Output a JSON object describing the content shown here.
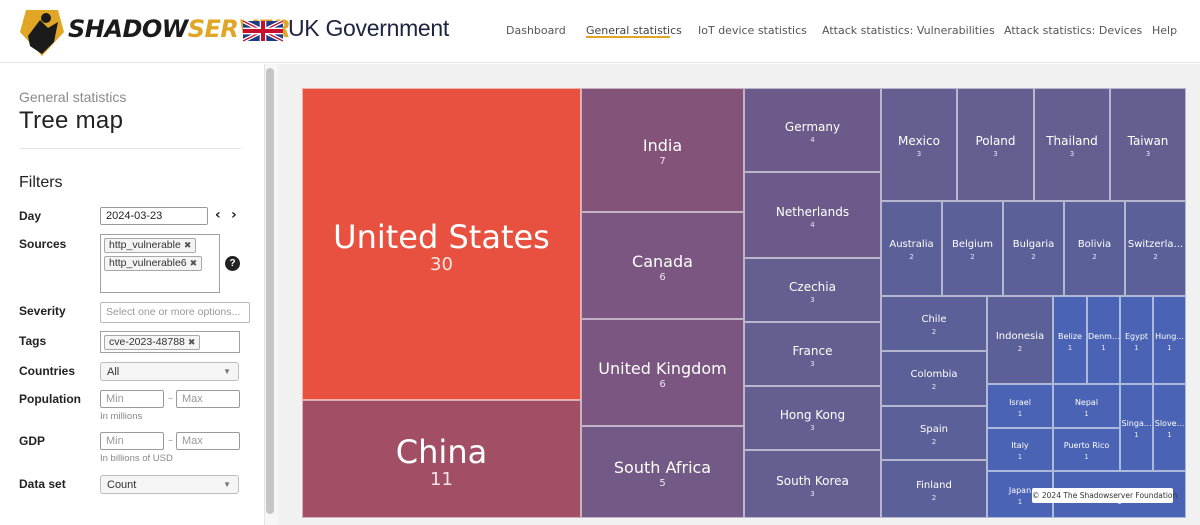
{
  "brand": {
    "logo_main": "SHADOW",
    "logo_accent": "SERVER",
    "partner": "UK Government"
  },
  "nav": [
    {
      "label": "Dashboard",
      "active": false
    },
    {
      "label": "General statistics",
      "active": true
    },
    {
      "label": "IoT device statistics",
      "active": false
    },
    {
      "label": "Attack statistics: Vulnerabilities",
      "active": false
    },
    {
      "label": "Attack statistics: Devices",
      "active": false
    },
    {
      "label": "Help",
      "active": false
    }
  ],
  "sidebar": {
    "breadcrumb": "General statistics",
    "title": "Tree map",
    "filters_heading": "Filters",
    "day_label": "Day",
    "day_value": "2024-03-23",
    "sources_label": "Sources",
    "sources": [
      "http_vulnerable",
      "http_vulnerable6"
    ],
    "severity_label": "Severity",
    "severity_placeholder": "Select one or more options...",
    "tags_label": "Tags",
    "tags": [
      "cve-2023-48788"
    ],
    "countries_label": "Countries",
    "countries_value": "All",
    "population_label": "Population",
    "min_placeholder": "Min",
    "max_placeholder": "Max",
    "population_hint": "In millions",
    "gdp_label": "GDP",
    "gdp_hint": "In billions of USD",
    "dataset_label": "Data set",
    "dataset_value": "Count"
  },
  "colors": {
    "brand_yellow": "#e1a626",
    "nav_underline": "#e1a626",
    "treemap_high": "#e85140",
    "treemap_low": "#4a63b4"
  },
  "treemap": {
    "cells": [
      {
        "name": "United States",
        "value": 30,
        "color": "#e85140"
      },
      {
        "name": "China",
        "value": 11,
        "color": "#a24f66"
      },
      {
        "name": "India",
        "value": 7,
        "color": "#83537a"
      },
      {
        "name": "Canada",
        "value": 6,
        "color": "#7a5680"
      },
      {
        "name": "United Kingdom",
        "value": 6,
        "color": "#7a5680"
      },
      {
        "name": "South Africa",
        "value": 5,
        "color": "#735985"
      },
      {
        "name": "Germany",
        "value": 4,
        "color": "#6c5b8a"
      },
      {
        "name": "Netherlands",
        "value": 4,
        "color": "#6c5b8a"
      },
      {
        "name": "Czechia",
        "value": 3,
        "color": "#655e90"
      },
      {
        "name": "France",
        "value": 3,
        "color": "#655e90"
      },
      {
        "name": "Hong Kong",
        "value": 3,
        "color": "#655e90"
      },
      {
        "name": "South Korea",
        "value": 3,
        "color": "#655e90"
      },
      {
        "name": "Mexico",
        "value": 3,
        "color": "#655e90"
      },
      {
        "name": "Poland",
        "value": 3,
        "color": "#655e90"
      },
      {
        "name": "Thailand",
        "value": 3,
        "color": "#655e90"
      },
      {
        "name": "Taiwan",
        "value": 3,
        "color": "#655e90"
      },
      {
        "name": "Australia",
        "value": 2,
        "color": "#5c6098"
      },
      {
        "name": "Belgium",
        "value": 2,
        "color": "#5c6098"
      },
      {
        "name": "Bulgaria",
        "value": 2,
        "color": "#5c6098"
      },
      {
        "name": "Bolivia",
        "value": 2,
        "color": "#5c6098"
      },
      {
        "name": "Switzerla...",
        "value": 2,
        "color": "#5c6098"
      },
      {
        "name": "Chile",
        "value": 2,
        "color": "#5c6098"
      },
      {
        "name": "Colombia",
        "value": 2,
        "color": "#5c6098"
      },
      {
        "name": "Spain",
        "value": 2,
        "color": "#5c6098"
      },
      {
        "name": "Finland",
        "value": 2,
        "color": "#5c6098"
      },
      {
        "name": "Indonesia",
        "value": 2,
        "color": "#5c6098"
      },
      {
        "name": "Belize",
        "value": 1,
        "color": "#4a63b4"
      },
      {
        "name": "Denm...",
        "value": 1,
        "color": "#4a63b4"
      },
      {
        "name": "Egypt",
        "value": 1,
        "color": "#4a63b4"
      },
      {
        "name": "Hung...",
        "value": 1,
        "color": "#4a63b4"
      },
      {
        "name": "Israel",
        "value": 1,
        "color": "#4a63b4"
      },
      {
        "name": "Nepal",
        "value": 1,
        "color": "#4a63b4"
      },
      {
        "name": "Italy",
        "value": 1,
        "color": "#4a63b4"
      },
      {
        "name": "Puerto Rico",
        "value": 1,
        "color": "#4a63b4"
      },
      {
        "name": "Singa...",
        "value": 1,
        "color": "#4a63b4"
      },
      {
        "name": "Slove...",
        "value": 1,
        "color": "#4a63b4"
      },
      {
        "name": "Japan",
        "value": 1,
        "color": "#4a63b4"
      },
      {
        "name": "",
        "value": 1,
        "color": "#4a63b4"
      }
    ]
  },
  "footer": "© 2024 The Shadowserver Foundation"
}
